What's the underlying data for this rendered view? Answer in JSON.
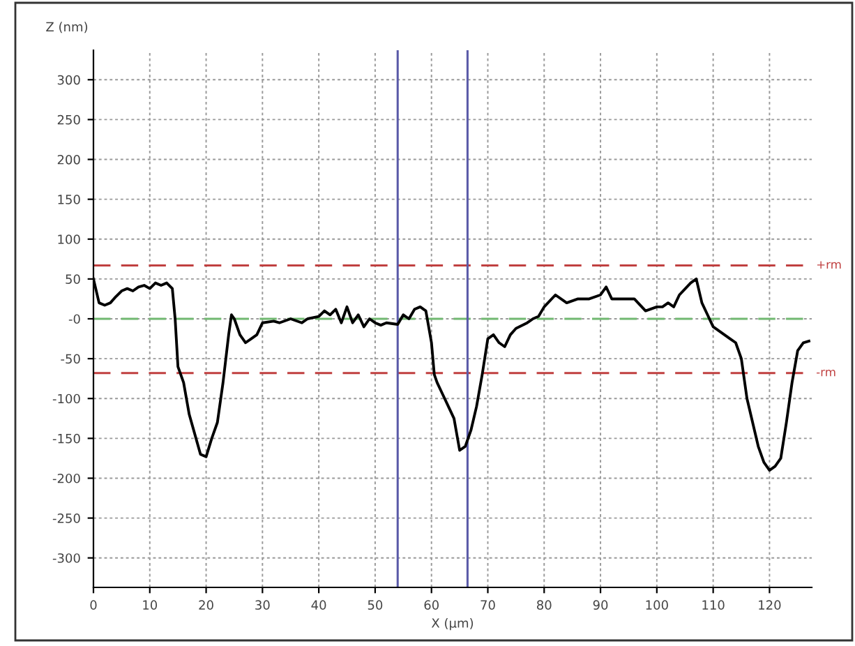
{
  "chart_data": {
    "type": "line",
    "ylabel": "Z (nm)",
    "xlabel": "X (µm)",
    "x": [
      0,
      1,
      2,
      3,
      4,
      5,
      6,
      7,
      8,
      9,
      10,
      11,
      12,
      13,
      14,
      14.5,
      15,
      16,
      17,
      18,
      19,
      20,
      21,
      22,
      23,
      24,
      24.5,
      25,
      26,
      27,
      28,
      29,
      30,
      32,
      33,
      35,
      37,
      38,
      40,
      41,
      42,
      43,
      44,
      45,
      46,
      47,
      48,
      49,
      50,
      51,
      52,
      54,
      55,
      56,
      57,
      58,
      59,
      60,
      60.5,
      61,
      62,
      63,
      64,
      65,
      66,
      67,
      68,
      69,
      70,
      71,
      72,
      73,
      74,
      75,
      77,
      78,
      79,
      80,
      82,
      84,
      86,
      88,
      90,
      91,
      92,
      94,
      96,
      98,
      100,
      101,
      102,
      103,
      104,
      106,
      107,
      108,
      109,
      110,
      111,
      112,
      113,
      114,
      115,
      116,
      117,
      118,
      119,
      120,
      121,
      122,
      123,
      124,
      125,
      126,
      127
    ],
    "series": [
      {
        "color": "#000000",
        "values": [
          50,
          20,
          17,
          20,
          28,
          35,
          38,
          35,
          40,
          42,
          38,
          45,
          42,
          45,
          38,
          0,
          -60,
          -80,
          -120,
          -145,
          -170,
          -173,
          -150,
          -130,
          -80,
          -20,
          5,
          0,
          -20,
          -30,
          -25,
          -20,
          -5,
          -3,
          -5,
          0,
          -5,
          0,
          3,
          10,
          5,
          12,
          -5,
          15,
          -5,
          5,
          -10,
          0,
          -5,
          -8,
          -5,
          -7,
          5,
          0,
          12,
          15,
          10,
          -30,
          -70,
          -80,
          -95,
          -110,
          -125,
          -165,
          -160,
          -140,
          -110,
          -70,
          -25,
          -20,
          -30,
          -35,
          -20,
          -12,
          -5,
          0,
          3,
          15,
          30,
          20,
          25,
          25,
          30,
          40,
          25,
          25,
          25,
          10,
          15,
          15,
          20,
          15,
          30,
          45,
          50,
          20,
          5,
          -10,
          -15,
          -20,
          -25,
          -30,
          -50,
          -100,
          -130,
          -160,
          -180,
          -190,
          -185,
          -175,
          -130,
          -80,
          -40,
          -30,
          -28
        ]
      }
    ],
    "xlim": [
      0,
      127.5
    ],
    "ylim": [
      -337,
      337
    ],
    "xticks": [
      0,
      10,
      20,
      30,
      40,
      50,
      60,
      70,
      80,
      90,
      100,
      110,
      120
    ],
    "yticks": [
      -300,
      -250,
      -200,
      -150,
      -100,
      -50,
      {
        "value": 0,
        "label": "-0"
      },
      50,
      100,
      150,
      200,
      250,
      300
    ],
    "grid": true,
    "line_style": "solid",
    "marker": "none",
    "ref_lines": [
      {
        "axis": "y",
        "value": 67,
        "label": "+rm",
        "color": "#c04040",
        "line_style": "dashed"
      },
      {
        "axis": "y",
        "value": -68,
        "label": "-rm",
        "color": "#c04040",
        "line_style": "dashed"
      },
      {
        "axis": "y",
        "value": 0,
        "color": "#70b870",
        "line_style": "dashed"
      },
      {
        "axis": "x",
        "value": 54,
        "color": "#5a5aa8",
        "line_style": "solid"
      },
      {
        "axis": "x",
        "value": 66.4,
        "color": "#5a5aa8",
        "line_style": "solid"
      }
    ]
  }
}
